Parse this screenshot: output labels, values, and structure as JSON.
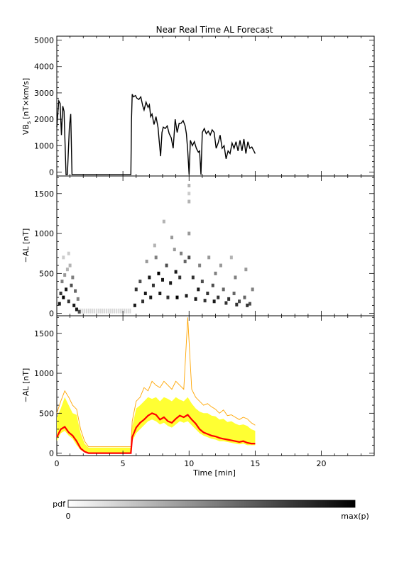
{
  "chart_data": [
    {
      "type": "line",
      "panel": "vbs",
      "title": "Near Real Time AL Forecast",
      "ylabel": "VB",
      "ylabel_sub": "s",
      "ylabel_unit": "[nT×km/s]",
      "xlim": [
        0,
        24
      ],
      "ylim": [
        -150,
        5150
      ],
      "yticks": [
        0,
        1000,
        2000,
        3000,
        4000,
        5000
      ],
      "color": "#000000",
      "x": [
        0.0,
        0.15,
        0.25,
        0.35,
        0.45,
        0.55,
        0.7,
        0.8,
        0.95,
        1.05,
        1.15,
        1.25,
        1.3,
        2.0,
        3.0,
        4.0,
        5.0,
        5.6,
        5.65,
        5.7,
        5.8,
        5.95,
        6.05,
        6.2,
        6.35,
        6.5,
        6.6,
        6.75,
        6.9,
        7.0,
        7.1,
        7.2,
        7.35,
        7.5,
        7.65,
        7.75,
        7.85,
        7.95,
        8.05,
        8.2,
        8.35,
        8.5,
        8.65,
        8.8,
        8.95,
        9.1,
        9.25,
        9.4,
        9.55,
        9.7,
        9.8,
        9.9,
        10.0,
        10.1,
        10.25,
        10.4,
        10.55,
        10.7,
        10.8,
        10.9,
        11.0,
        11.15,
        11.3,
        11.45,
        11.6,
        11.75,
        11.9,
        12.05,
        12.2,
        12.35,
        12.5,
        12.65,
        12.8,
        12.95,
        13.1,
        13.25,
        13.4,
        13.55,
        13.7,
        13.85,
        14.0,
        14.15,
        14.3,
        14.45,
        14.6,
        14.75,
        14.9,
        15.0
      ],
      "values": [
        1700,
        2700,
        2600,
        1400,
        2500,
        2300,
        -100,
        -100,
        1700,
        2200,
        -100,
        -100,
        -100,
        -100,
        -100,
        -100,
        -100,
        -100,
        2000,
        2950,
        2850,
        2900,
        2800,
        2750,
        2850,
        2500,
        2350,
        2650,
        2450,
        2550,
        2100,
        2200,
        1800,
        2100,
        1700,
        1150,
        600,
        1500,
        1700,
        1650,
        1750,
        1450,
        1300,
        900,
        2000,
        1500,
        1850,
        1850,
        1950,
        1750,
        1450,
        800,
        -100,
        1200,
        1000,
        1150,
        900,
        750,
        800,
        -100,
        1500,
        1650,
        1450,
        1550,
        1400,
        1600,
        1500,
        900,
        1100,
        1400,
        900,
        1000,
        500,
        800,
        700,
        1100,
        900,
        1150,
        800,
        1200,
        800,
        1250,
        700,
        1150,
        900,
        950,
        800,
        700
      ],
      "annotations": []
    },
    {
      "type": "heatmap",
      "panel": "al-pdf",
      "ylabel": "−AL [nT]",
      "xlim": [
        0,
        24
      ],
      "ylim": [
        -30,
        1720
      ],
      "yticks": [
        0,
        500,
        1000,
        1500
      ],
      "note": "probability density of predicted -AL, cells shaded white (0) to black (max(p))",
      "cells": [
        [
          0.3,
          250,
          0.8
        ],
        [
          0.5,
          200,
          1.0
        ],
        [
          0.7,
          300,
          0.9
        ],
        [
          0.9,
          150,
          0.8
        ],
        [
          1.1,
          350,
          0.7
        ],
        [
          0.4,
          400,
          0.5
        ],
        [
          0.8,
          550,
          0.3
        ],
        [
          1.3,
          100,
          0.9
        ],
        [
          1.5,
          50,
          0.9
        ],
        [
          1.7,
          20,
          0.7
        ],
        [
          0.2,
          120,
          0.9
        ],
        [
          0.6,
          480,
          0.4
        ],
        [
          1.0,
          600,
          0.3
        ],
        [
          1.2,
          450,
          0.5
        ],
        [
          0.5,
          700,
          0.2
        ],
        [
          1.4,
          280,
          0.6
        ],
        [
          0.9,
          750,
          0.2
        ],
        [
          1.6,
          180,
          0.5
        ],
        [
          6.0,
          300,
          0.8
        ],
        [
          6.3,
          400,
          0.7
        ],
        [
          6.7,
          250,
          0.9
        ],
        [
          7.0,
          450,
          0.9
        ],
        [
          7.3,
          350,
          0.8
        ],
        [
          7.7,
          500,
          1.0
        ],
        [
          8.0,
          420,
          0.9
        ],
        [
          8.3,
          600,
          0.7
        ],
        [
          8.6,
          380,
          0.9
        ],
        [
          9.0,
          520,
          0.9
        ],
        [
          9.3,
          450,
          0.8
        ],
        [
          9.7,
          650,
          0.6
        ],
        [
          10.0,
          700,
          0.7
        ],
        [
          10.3,
          450,
          0.8
        ],
        [
          10.7,
          300,
          0.9
        ],
        [
          11.0,
          400,
          0.7
        ],
        [
          11.4,
          250,
          0.8
        ],
        [
          11.8,
          350,
          0.7
        ],
        [
          12.2,
          200,
          0.8
        ],
        [
          12.6,
          300,
          0.6
        ],
        [
          13.0,
          180,
          0.8
        ],
        [
          13.4,
          250,
          0.6
        ],
        [
          13.8,
          150,
          0.7
        ],
        [
          14.2,
          200,
          0.6
        ],
        [
          14.6,
          120,
          0.7
        ],
        [
          5.9,
          100,
          0.9
        ],
        [
          6.5,
          150,
          0.8
        ],
        [
          7.1,
          200,
          0.9
        ],
        [
          7.8,
          250,
          0.9
        ],
        [
          8.4,
          200,
          0.8
        ],
        [
          9.1,
          200,
          1.0
        ],
        [
          9.8,
          220,
          0.9
        ],
        [
          10.5,
          180,
          0.9
        ],
        [
          11.2,
          160,
          0.8
        ],
        [
          11.9,
          150,
          0.9
        ],
        [
          12.8,
          130,
          0.8
        ],
        [
          13.6,
          110,
          0.8
        ],
        [
          14.4,
          100,
          0.8
        ],
        [
          7.4,
          850,
          0.3
        ],
        [
          8.1,
          1150,
          0.3
        ],
        [
          8.7,
          950,
          0.4
        ],
        [
          9.4,
          750,
          0.5
        ],
        [
          10.0,
          1000,
          0.4
        ],
        [
          10.0,
          1600,
          0.3
        ],
        [
          10.0,
          1500,
          0.2
        ],
        [
          10.0,
          1400,
          0.3
        ],
        [
          11.5,
          700,
          0.4
        ],
        [
          12.4,
          600,
          0.4
        ],
        [
          13.2,
          700,
          0.3
        ],
        [
          14.3,
          550,
          0.4
        ],
        [
          6.8,
          650,
          0.4
        ],
        [
          7.5,
          700,
          0.5
        ],
        [
          8.9,
          800,
          0.4
        ],
        [
          10.8,
          600,
          0.5
        ],
        [
          12.0,
          500,
          0.5
        ],
        [
          13.5,
          450,
          0.5
        ],
        [
          14.8,
          300,
          0.5
        ]
      ]
    },
    {
      "type": "area",
      "panel": "al-forecast",
      "ylabel": "−AL [nT]",
      "xlabel": "Time [min]",
      "xlim": [
        0,
        24
      ],
      "ylim": [
        -30,
        1720
      ],
      "yticks": [
        0,
        500,
        1000,
        1500
      ],
      "xticks": [
        0,
        5,
        10,
        15,
        20
      ],
      "x": [
        0.0,
        0.3,
        0.6,
        0.9,
        1.2,
        1.5,
        1.8,
        2.1,
        2.4,
        2.7,
        3.0,
        4.0,
        5.0,
        5.6,
        5.7,
        6.0,
        6.3,
        6.6,
        6.9,
        7.2,
        7.5,
        7.8,
        8.1,
        8.4,
        8.7,
        9.0,
        9.3,
        9.6,
        9.9,
        10.2,
        10.5,
        10.8,
        11.1,
        11.4,
        11.7,
        12.0,
        12.3,
        12.6,
        12.9,
        13.2,
        13.5,
        13.8,
        14.1,
        14.4,
        14.7,
        15.0
      ],
      "series": [
        {
          "role": "envelope-upper",
          "color": "#ffa500",
          "values": [
            500,
            650,
            780,
            700,
            600,
            550,
            300,
            150,
            80,
            80,
            80,
            80,
            80,
            80,
            400,
            650,
            700,
            820,
            780,
            900,
            850,
            820,
            900,
            850,
            800,
            900,
            850,
            800,
            1700,
            800,
            700,
            650,
            600,
            620,
            580,
            550,
            500,
            540,
            470,
            480,
            450,
            420,
            450,
            430,
            380,
            350
          ]
        },
        {
          "role": "band-upper",
          "color": "#ffff00",
          "values": [
            450,
            560,
            700,
            600,
            500,
            480,
            250,
            120,
            70,
            70,
            70,
            70,
            70,
            70,
            330,
            560,
            600,
            650,
            700,
            680,
            700,
            650,
            700,
            680,
            650,
            700,
            670,
            650,
            700,
            620,
            560,
            520,
            500,
            500,
            470,
            460,
            420,
            430,
            390,
            400,
            370,
            350,
            360,
            340,
            300,
            280
          ]
        },
        {
          "role": "median",
          "color": "#ff0000",
          "values": [
            200,
            300,
            330,
            260,
            220,
            150,
            60,
            20,
            0,
            0,
            0,
            0,
            0,
            0,
            200,
            320,
            380,
            420,
            470,
            500,
            480,
            420,
            450,
            400,
            380,
            430,
            470,
            450,
            480,
            420,
            370,
            300,
            260,
            240,
            220,
            210,
            190,
            180,
            170,
            160,
            150,
            140,
            150,
            130,
            120,
            120
          ]
        },
        {
          "role": "band-lower",
          "color": "#ffff00",
          "values": [
            150,
            250,
            280,
            220,
            180,
            100,
            40,
            10,
            0,
            0,
            0,
            0,
            0,
            0,
            150,
            250,
            300,
            350,
            400,
            420,
            400,
            360,
            380,
            340,
            320,
            360,
            400,
            380,
            400,
            350,
            300,
            250,
            220,
            200,
            180,
            170,
            150,
            150,
            140,
            130,
            120,
            110,
            120,
            100,
            100,
            100
          ]
        }
      ]
    }
  ],
  "colorbar": {
    "label": "pdf",
    "min_label": "0",
    "max_label": "max(p)",
    "colors": [
      "#ffffff",
      "#000000"
    ]
  }
}
